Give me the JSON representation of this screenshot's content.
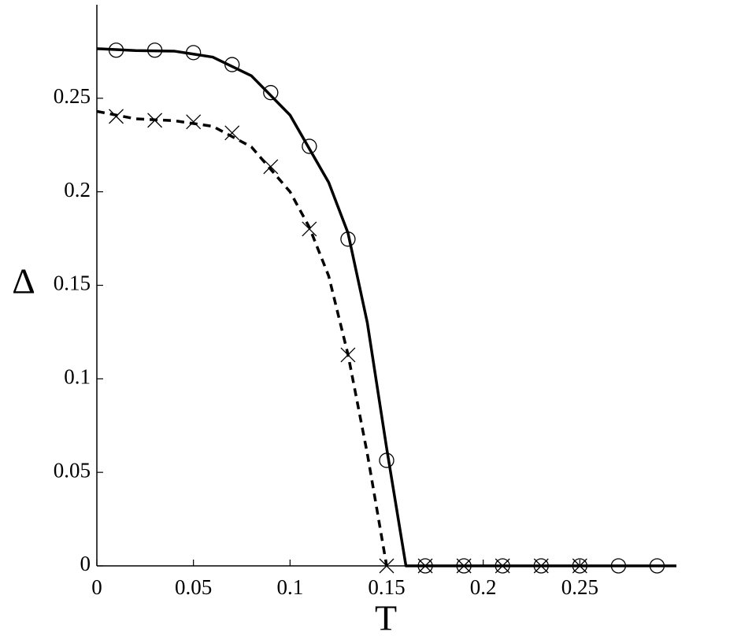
{
  "chart_data": {
    "type": "line",
    "x_label": "T",
    "y_label": "Δ",
    "xlim": [
      0,
      0.3
    ],
    "ylim": [
      0,
      0.3
    ],
    "xticks": [
      0,
      0.05,
      0.1,
      0.15,
      0.2,
      0.25
    ],
    "yticks": [
      0,
      0.05,
      0.1,
      0.15,
      0.2,
      0.25
    ],
    "series": [
      {
        "color": "#000000",
        "line_style": "solid",
        "marker": "none",
        "x": [
          0,
          0.02,
          0.04,
          0.06,
          0.08,
          0.1,
          0.12,
          0.13,
          0.14,
          0.15,
          0.16,
          0.3
        ],
        "values": [
          0.2765,
          0.2755,
          0.2752,
          0.272,
          0.262,
          0.241,
          0.205,
          0.178,
          0.13,
          0.063,
          0,
          0
        ]
      },
      {
        "color": "#000000",
        "line_style": "dashed",
        "marker": "none",
        "x": [
          0,
          0.02,
          0.04,
          0.06,
          0.08,
          0.1,
          0.11,
          0.12,
          0.13,
          0.14,
          0.15
        ],
        "values": [
          0.243,
          0.239,
          0.238,
          0.235,
          0.224,
          0.2,
          0.181,
          0.155,
          0.113,
          0.06,
          0
        ]
      },
      {
        "color": "#000000",
        "line_style": "none",
        "marker": "circle",
        "x": [
          0.01,
          0.03,
          0.05,
          0.07,
          0.09,
          0.11,
          0.13,
          0.15,
          0.17,
          0.19,
          0.21,
          0.23,
          0.25,
          0.27,
          0.29
        ],
        "values": [
          0.2757,
          0.2757,
          0.2744,
          0.268,
          0.253,
          0.2243,
          0.1747,
          0.0564,
          0,
          0,
          0,
          0,
          0,
          0,
          0
        ]
      },
      {
        "color": "#000000",
        "line_style": "none",
        "marker": "cross",
        "x": [
          0.01,
          0.03,
          0.05,
          0.07,
          0.09,
          0.11,
          0.13,
          0.15,
          0.17,
          0.19,
          0.21,
          0.23,
          0.25
        ],
        "values": [
          0.2403,
          0.2382,
          0.2374,
          0.2315,
          0.2134,
          0.1801,
          0.1128,
          0,
          0,
          0,
          0,
          0,
          0
        ]
      }
    ]
  }
}
